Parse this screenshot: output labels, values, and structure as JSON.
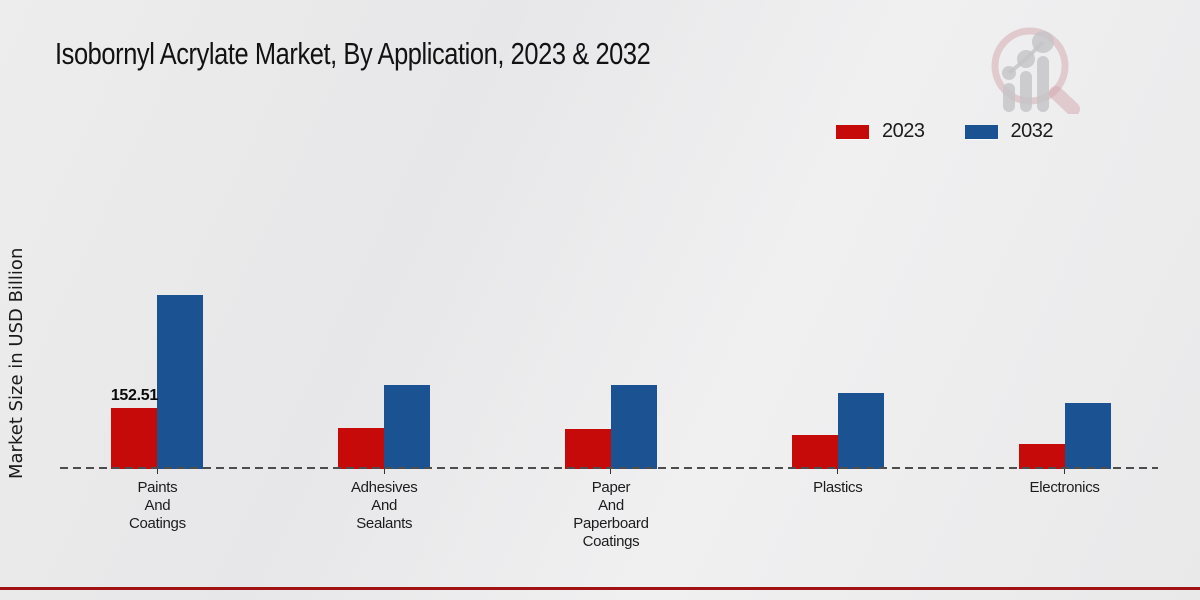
{
  "chart_data": {
    "type": "bar",
    "title": "Isobornyl Acrylate Market, By Application, 2023 & 2032",
    "xlabel": "",
    "ylabel": "Market Size in USD Billion",
    "ylim": [
      0,
      450
    ],
    "grid": false,
    "legend_position": "top-right",
    "categories": [
      "Paints\nAnd\nCoatings",
      "Adhesives\nAnd\nSealants",
      "Paper\nAnd\nPaperboard\nCoatings",
      "Plastics",
      "Electronics"
    ],
    "series": [
      {
        "name": "2023",
        "color": "#c60909",
        "values": [
          152.51,
          102.5,
          100,
          85,
          62.5
        ]
      },
      {
        "name": "2032",
        "color": "#1b5291",
        "values": [
          435,
          210,
          209,
          189,
          166
        ]
      }
    ],
    "annotations": [
      {
        "series": "2023",
        "category_index": 0,
        "text": "152.51"
      }
    ],
    "baseline_style": "dashed"
  },
  "icons": {
    "watermark": "magnifier-bar-chart-logo"
  },
  "footer": {
    "stripe_color": "#c00000"
  }
}
